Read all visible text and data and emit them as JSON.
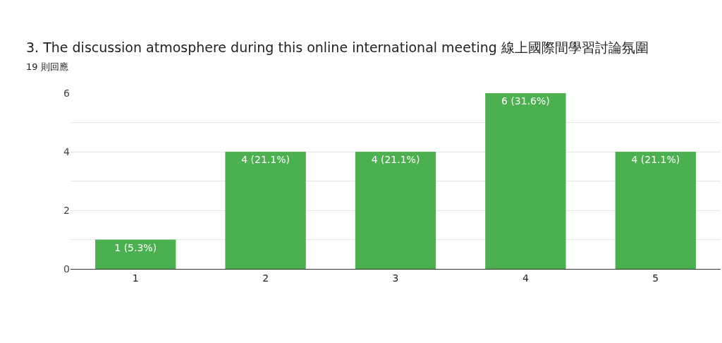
{
  "chart_data": {
    "type": "bar",
    "title": "3. The discussion atmosphere during this online international meeting 線上國際間學習討論氛圍",
    "subtitle": "19 則回應",
    "categories": [
      "1",
      "2",
      "3",
      "4",
      "5"
    ],
    "values": [
      1,
      4,
      4,
      6,
      4
    ],
    "color": "#4caf50",
    "value_labels": [
      "1 (5.3%)",
      "4 (21.1%)",
      "4 (21.1%)",
      "6 (31.6%)",
      "4 (21.1%)"
    ],
    "ylim": [
      0,
      6
    ],
    "yticks": [
      0,
      {
        "value": 1,
        "label": null
      },
      2,
      {
        "value": 3,
        "label": null
      },
      4,
      {
        "value": 5,
        "label": null
      },
      6
    ],
    "grid": "y",
    "legend": false
  }
}
